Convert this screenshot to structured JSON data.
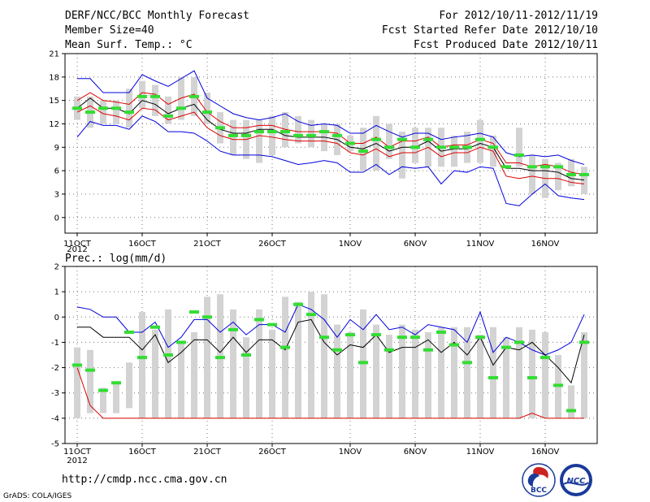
{
  "header": {
    "title": "DERF/NCC/BCC Monthly Forecast",
    "member_size": "Member Size=40",
    "variable": "Mean Surf. Temp.: °C",
    "period": "For 2012/10/11-2012/11/19",
    "started": "Fcst Started Refer Date 2012/10/10",
    "produced": "Fcst Produced Date 2012/10/11"
  },
  "footer": {
    "url": "http://cmdp.ncc.cma.gov.cn",
    "credit": "GrADS: COLA/IGES",
    "logo_left_text": "BCC",
    "logo_right_text": "NCC"
  },
  "colors": {
    "box": "#d3d3d3",
    "median": "#33dd33",
    "mean": "#000000",
    "spread": "#dd0000",
    "extreme": "#0000dd"
  },
  "chart_data": [
    {
      "type": "box",
      "title": "Mean Surf. Temp.: °C",
      "ylim": [
        -2,
        21
      ],
      "yticks": [
        0,
        3,
        6,
        9,
        12,
        15,
        18,
        21
      ],
      "xticks": [
        "11OCT",
        "16OCT",
        "21OCT",
        "26OCT",
        "1NOV",
        "6NOV",
        "11NOV",
        "16NOV"
      ],
      "xtick_days": [
        1,
        6,
        11,
        16,
        22,
        27,
        32,
        37
      ],
      "year_label": "2012",
      "days": 40,
      "box_low": [
        12.5,
        11.5,
        12.0,
        12.0,
        11.5,
        14.0,
        13.0,
        12.0,
        12.5,
        13.0,
        12.0,
        9.5,
        8.0,
        7.5,
        7.0,
        8.0,
        9.0,
        9.5,
        9.0,
        8.5,
        8.0,
        8.5,
        6.0,
        6.0,
        7.5,
        5.0,
        7.0,
        6.5,
        6.5,
        6.5,
        7.0,
        7.0,
        6.5,
        7.5,
        6.5,
        3.0,
        2.5,
        3.5,
        4.0,
        3.0
      ],
      "box_high": [
        15.5,
        15.5,
        15.0,
        15.0,
        16.5,
        17.5,
        17.0,
        15.5,
        18.0,
        18.0,
        16.0,
        13.5,
        12.5,
        12.5,
        12.5,
        13.0,
        13.5,
        13.0,
        12.5,
        12.0,
        12.0,
        10.5,
        11.5,
        13.0,
        12.0,
        11.0,
        11.5,
        11.5,
        11.5,
        10.5,
        11.0,
        12.5,
        10.5,
        7.0,
        11.5,
        8.0,
        7.5,
        7.0,
        7.5,
        6.5
      ],
      "median": [
        14.0,
        13.5,
        14.0,
        14.0,
        13.5,
        15.5,
        15.5,
        13.0,
        14.0,
        15.5,
        13.5,
        11.5,
        10.5,
        10.5,
        11.0,
        11.0,
        11.0,
        10.5,
        10.5,
        11.0,
        10.5,
        9.5,
        8.5,
        10.0,
        9.0,
        10.0,
        9.0,
        10.0,
        9.0,
        9.0,
        9.0,
        10.0,
        9.0,
        6.5,
        8.0,
        6.5,
        6.5,
        6.5,
        5.5,
        5.5
      ],
      "series": [
        {
          "name": "max",
          "color": "#0000dd",
          "values": [
            17.8,
            17.8,
            16.0,
            16.0,
            16.0,
            18.3,
            17.5,
            16.8,
            17.8,
            18.8,
            15.3,
            14.3,
            13.3,
            12.8,
            12.5,
            12.8,
            13.3,
            12.3,
            11.8,
            12.0,
            11.8,
            10.8,
            10.8,
            11.8,
            11.0,
            10.3,
            10.8,
            10.8,
            10.0,
            10.3,
            10.5,
            10.8,
            10.3,
            8.3,
            7.8,
            8.0,
            7.8,
            8.0,
            7.3,
            6.8
          ]
        },
        {
          "name": "mean+sd",
          "color": "#dd0000",
          "values": [
            15.0,
            16.0,
            15.0,
            14.8,
            14.5,
            16.0,
            15.8,
            14.5,
            15.3,
            15.8,
            13.5,
            12.3,
            11.5,
            11.5,
            11.8,
            11.8,
            11.3,
            11.0,
            11.0,
            11.0,
            10.8,
            9.5,
            9.5,
            10.3,
            9.0,
            9.8,
            9.8,
            10.3,
            9.0,
            9.3,
            9.3,
            10.0,
            9.5,
            7.0,
            7.0,
            6.5,
            6.8,
            6.5,
            5.8,
            5.5
          ]
        },
        {
          "name": "mean",
          "color": "#000000",
          "values": [
            14.0,
            15.3,
            14.0,
            14.0,
            13.3,
            15.0,
            14.5,
            13.3,
            14.0,
            14.5,
            12.5,
            11.3,
            10.8,
            10.8,
            11.3,
            11.3,
            10.5,
            10.3,
            10.3,
            10.3,
            10.0,
            9.0,
            8.8,
            9.5,
            8.5,
            9.0,
            9.0,
            9.8,
            8.5,
            8.8,
            8.8,
            9.5,
            9.0,
            6.3,
            6.3,
            6.0,
            6.0,
            5.8,
            5.0,
            4.8
          ]
        },
        {
          "name": "mean-sd",
          "color": "#dd0000",
          "values": [
            13.5,
            14.3,
            13.3,
            13.0,
            12.5,
            14.0,
            13.8,
            12.5,
            13.0,
            13.5,
            11.5,
            10.5,
            10.0,
            10.0,
            10.5,
            10.3,
            10.0,
            9.8,
            9.8,
            9.8,
            9.5,
            8.3,
            8.0,
            8.8,
            7.8,
            8.3,
            8.3,
            9.0,
            7.8,
            8.3,
            8.3,
            9.0,
            8.5,
            5.3,
            5.0,
            5.3,
            5.0,
            5.0,
            4.5,
            4.3
          ]
        },
        {
          "name": "min",
          "color": "#0000dd",
          "values": [
            10.3,
            12.3,
            11.8,
            11.8,
            11.3,
            13.0,
            12.3,
            11.0,
            11.0,
            10.8,
            9.8,
            8.5,
            8.0,
            8.0,
            8.0,
            7.8,
            7.3,
            6.8,
            7.0,
            7.3,
            7.0,
            5.8,
            5.8,
            6.8,
            5.5,
            6.5,
            6.3,
            6.5,
            4.3,
            6.0,
            5.8,
            6.5,
            6.3,
            1.8,
            1.5,
            3.0,
            4.3,
            2.8,
            2.5,
            2.3
          ]
        }
      ]
    },
    {
      "type": "box",
      "title": "Prec.: log(mm/d)",
      "ylim": [
        -5,
        2
      ],
      "yticks": [
        -5,
        -4,
        -3,
        -2,
        -1,
        0,
        1,
        2
      ],
      "xticks": [
        "11OCT",
        "16OCT",
        "21OCT",
        "26OCT",
        "1NOV",
        "6NOV",
        "11NOV",
        "16NOV"
      ],
      "xtick_days": [
        1,
        6,
        11,
        16,
        22,
        27,
        32,
        37
      ],
      "year_label": "2012",
      "days": 40,
      "box_low": [
        -4.0,
        -3.8,
        -3.8,
        -3.8,
        -3.6,
        -4.0,
        -4.0,
        -4.0,
        -4.0,
        -4.0,
        -4.0,
        -4.0,
        -4.0,
        -4.0,
        -4.0,
        -4.0,
        -4.0,
        -4.0,
        -4.0,
        -4.0,
        -4.0,
        -4.0,
        -4.0,
        -4.0,
        -4.0,
        -4.0,
        -4.0,
        -4.0,
        -4.0,
        -4.0,
        -4.0,
        -4.0,
        -4.0,
        -4.0,
        -4.0,
        -4.0,
        -4.0,
        -4.0,
        -4.0,
        -4.0
      ],
      "box_high": [
        -1.2,
        -1.3,
        -2.8,
        -2.6,
        -1.8,
        0.2,
        -0.5,
        0.3,
        -1.0,
        -0.6,
        0.8,
        0.9,
        0.3,
        -0.8,
        0.3,
        -0.5,
        0.8,
        0.6,
        1.0,
        0.9,
        -0.3,
        -0.6,
        0.3,
        -0.3,
        -0.7,
        -0.3,
        -0.5,
        -0.6,
        -0.4,
        -0.4,
        -0.4,
        -0.7,
        -0.4,
        -0.8,
        -0.4,
        -0.5,
        -0.6,
        -1.5,
        -2.7,
        -0.6
      ],
      "median": [
        -1.9,
        -2.1,
        -2.9,
        -2.6,
        -0.6,
        -1.6,
        -0.4,
        -1.5,
        -1.0,
        0.2,
        0.0,
        -1.6,
        -0.5,
        -1.5,
        -0.1,
        -0.3,
        -1.2,
        0.5,
        0.1,
        -0.8,
        -1.3,
        -0.7,
        -1.8,
        -0.7,
        -1.3,
        -0.8,
        -0.8,
        -1.3,
        -0.6,
        -1.1,
        -1.8,
        -0.8,
        -2.4,
        -1.2,
        -1.0,
        -2.4,
        -1.6,
        -2.7,
        -3.7,
        -1.0
      ],
      "series": [
        {
          "name": "max",
          "color": "#0000dd",
          "values": [
            0.4,
            0.3,
            0.0,
            0.0,
            -0.6,
            -0.6,
            -0.2,
            -1.2,
            -0.8,
            -0.1,
            -0.1,
            -0.6,
            -0.2,
            -0.7,
            -0.3,
            -0.3,
            -0.6,
            0.5,
            0.3,
            -0.1,
            -0.8,
            -0.1,
            -0.5,
            0.1,
            -0.5,
            -0.4,
            -0.7,
            -0.3,
            -0.4,
            -0.5,
            -1.0,
            0.2,
            -1.4,
            -0.8,
            -1.0,
            -1.3,
            -1.5,
            -1.3,
            -1.0,
            0.1
          ]
        },
        {
          "name": "mean",
          "color": "#000000",
          "values": [
            -0.4,
            -0.4,
            -0.8,
            -0.8,
            -0.8,
            -1.3,
            -0.7,
            -1.8,
            -1.4,
            -0.9,
            -0.9,
            -1.4,
            -0.8,
            -1.4,
            -0.9,
            -0.9,
            -1.3,
            -0.2,
            -0.1,
            -1.0,
            -1.5,
            -1.1,
            -1.2,
            -0.7,
            -1.4,
            -1.2,
            -1.2,
            -0.9,
            -1.4,
            -1.0,
            -1.5,
            -0.8,
            -1.9,
            -1.2,
            -1.3,
            -1.0,
            -1.5,
            -2.0,
            -2.6,
            -0.7
          ]
        },
        {
          "name": "min",
          "color": "#dd0000",
          "values": [
            -2.0,
            -3.5,
            -4.0,
            -4.0,
            -4.0,
            -4.0,
            -4.0,
            -4.0,
            -4.0,
            -4.0,
            -4.0,
            -4.0,
            -4.0,
            -4.0,
            -4.0,
            -4.0,
            -4.0,
            -4.0,
            -4.0,
            -4.0,
            -4.0,
            -4.0,
            -4.0,
            -4.0,
            -4.0,
            -4.0,
            -4.0,
            -4.0,
            -4.0,
            -4.0,
            -4.0,
            -4.0,
            -4.0,
            -4.0,
            -4.0,
            -3.8,
            -4.0,
            -4.0,
            -4.0,
            -4.0
          ]
        }
      ]
    }
  ]
}
